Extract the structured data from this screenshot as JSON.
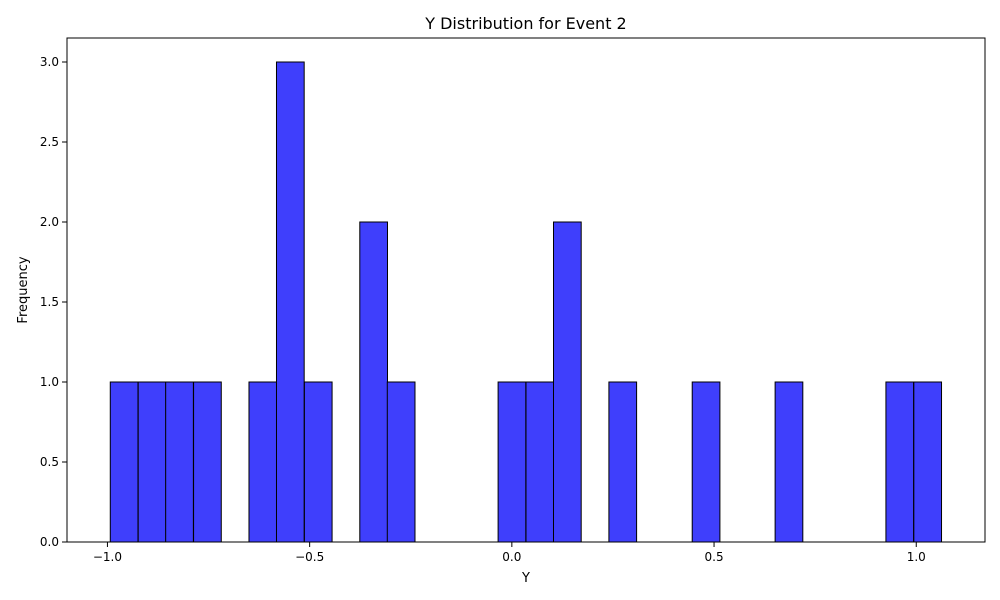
{
  "chart_data": {
    "type": "bar",
    "title": "Y Distribution for Event 2",
    "xlabel": "Y",
    "ylabel": "Frequency",
    "xlim": [
      -1.1,
      1.17
    ],
    "ylim": [
      0,
      3.15
    ],
    "bin_width": 0.0685,
    "bar_color": "#3f3ffc",
    "edge_color": "#000000",
    "grid": false,
    "x_ticks": [
      {
        "value": -1.0,
        "label": "−1.0"
      },
      {
        "value": -0.5,
        "label": "−0.5"
      },
      {
        "value": 0.0,
        "label": "0.0"
      },
      {
        "value": 0.5,
        "label": "0.5"
      },
      {
        "value": 1.0,
        "label": "1.0"
      }
    ],
    "y_ticks": [
      {
        "value": 0.0,
        "label": "0.0"
      },
      {
        "value": 0.5,
        "label": "0.5"
      },
      {
        "value": 1.0,
        "label": "1.0"
      },
      {
        "value": 1.5,
        "label": "1.5"
      },
      {
        "value": 2.0,
        "label": "2.0"
      },
      {
        "value": 2.5,
        "label": "2.5"
      },
      {
        "value": 3.0,
        "label": "3.0"
      }
    ],
    "bins": [
      {
        "x0": -0.993,
        "count": 1
      },
      {
        "x0": -0.924,
        "count": 1
      },
      {
        "x0": -0.856,
        "count": 1
      },
      {
        "x0": -0.787,
        "count": 1
      },
      {
        "x0": -0.719,
        "count": 0
      },
      {
        "x0": -0.65,
        "count": 1
      },
      {
        "x0": -0.582,
        "count": 3
      },
      {
        "x0": -0.513,
        "count": 1
      },
      {
        "x0": -0.445,
        "count": 0
      },
      {
        "x0": -0.376,
        "count": 2
      },
      {
        "x0": -0.308,
        "count": 1
      },
      {
        "x0": -0.239,
        "count": 0
      },
      {
        "x0": -0.171,
        "count": 0
      },
      {
        "x0": -0.102,
        "count": 0
      },
      {
        "x0": -0.034,
        "count": 1
      },
      {
        "x0": 0.035,
        "count": 1
      },
      {
        "x0": 0.103,
        "count": 2
      },
      {
        "x0": 0.172,
        "count": 0
      },
      {
        "x0": 0.24,
        "count": 1
      },
      {
        "x0": 0.309,
        "count": 0
      },
      {
        "x0": 0.377,
        "count": 0
      },
      {
        "x0": 0.446,
        "count": 1
      },
      {
        "x0": 0.514,
        "count": 0
      },
      {
        "x0": 0.583,
        "count": 0
      },
      {
        "x0": 0.651,
        "count": 1
      },
      {
        "x0": 0.72,
        "count": 0
      },
      {
        "x0": 0.788,
        "count": 0
      },
      {
        "x0": 0.857,
        "count": 0
      },
      {
        "x0": 0.925,
        "count": 1
      },
      {
        "x0": 0.994,
        "count": 1
      }
    ]
  }
}
